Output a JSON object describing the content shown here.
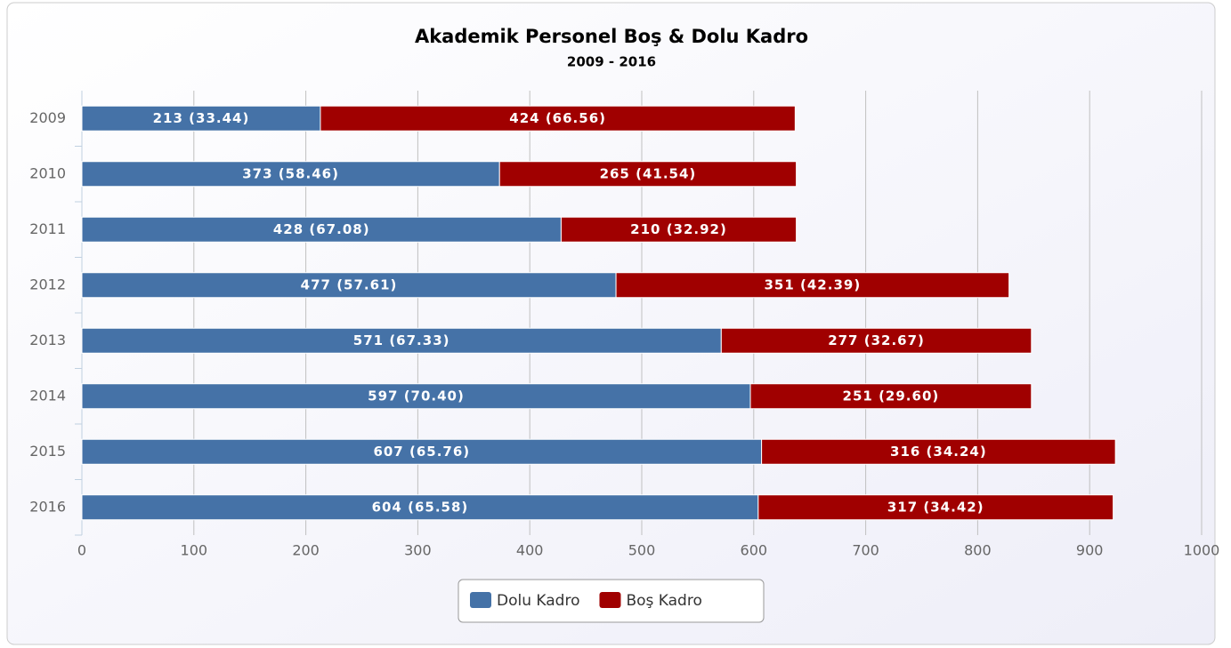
{
  "chart_data": {
    "type": "stacked-bar-horizontal",
    "title": "Akademik Personel Boş & Dolu Kadro",
    "subtitle": "2009 - 2016",
    "categories": [
      "2009",
      "2010",
      "2011",
      "2012",
      "2013",
      "2014",
      "2015",
      "2016"
    ],
    "series": [
      {
        "name": "Dolu Kadro",
        "color": "#4572a7",
        "values": [
          213,
          373,
          428,
          477,
          571,
          597,
          607,
          604
        ],
        "value_labels": [
          "213 (33.44)",
          "373 (58.46)",
          "428 (67.08)",
          "477 (57.61)",
          "571 (67.33)",
          "597 (70.40)",
          "607 (65.76)",
          "604 (65.58)"
        ]
      },
      {
        "name": "Boş Kadro",
        "color": "#a00000",
        "values": [
          424,
          265,
          210,
          351,
          277,
          251,
          316,
          317
        ],
        "value_labels": [
          "424 (66.56)",
          "265 (41.54)",
          "210 (32.92)",
          "351 (42.39)",
          "277 (32.67)",
          "251 (29.60)",
          "316 (34.24)",
          "317 (34.42)"
        ]
      }
    ],
    "xlim": [
      0,
      1000
    ],
    "xticks": [
      0,
      100,
      200,
      300,
      400,
      500,
      600,
      700,
      800,
      900,
      1000
    ],
    "grid": true,
    "legend": "bottom"
  }
}
